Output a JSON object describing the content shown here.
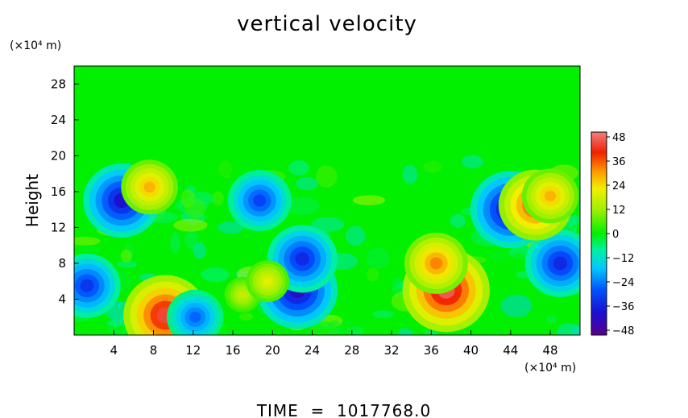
{
  "chart_data": {
    "type": "heatmap",
    "title": "vertical velocity",
    "ylabel": "Height",
    "y_unit_label": "(×10⁴ m)",
    "x_unit_label": "(×10⁴ m)",
    "footer": "TIME  =  1017768.0",
    "xlim": [
      0,
      51
    ],
    "ylim": [
      0,
      30
    ],
    "x_ticks": [
      4,
      8,
      12,
      16,
      20,
      24,
      28,
      32,
      36,
      40,
      44,
      48
    ],
    "x_tick_labels": [
      "4",
      "8",
      "12",
      "16",
      "20",
      "24",
      "28",
      "32",
      "36",
      "40",
      "44",
      "48"
    ],
    "y_ticks": [
      4,
      8,
      12,
      16,
      20,
      24,
      28
    ],
    "y_tick_labels": [
      "4",
      "8",
      "12",
      "16",
      "20",
      "24",
      "28"
    ],
    "colorbar": {
      "range": [
        -48,
        48
      ],
      "ticks": [
        48,
        36,
        24,
        12,
        0,
        -12,
        -24,
        -36,
        -48
      ],
      "tick_labels": [
        "48",
        "36",
        "24",
        "12",
        "0",
        "−12",
        "−24",
        "−36",
        "−48"
      ]
    },
    "features": [
      {
        "x": 37.5,
        "y": 5.0,
        "value": 44
      },
      {
        "x": 36.5,
        "y": 8.0,
        "value": 30
      },
      {
        "x": 22.5,
        "y": 5.0,
        "value": -40
      },
      {
        "x": 23.0,
        "y": 8.5,
        "value": -34
      },
      {
        "x": 4.8,
        "y": 15.0,
        "value": -38
      },
      {
        "x": 44.0,
        "y": 14.0,
        "value": -40
      },
      {
        "x": 49.0,
        "y": 8.0,
        "value": -34
      },
      {
        "x": 9.2,
        "y": 2.2,
        "value": 42
      },
      {
        "x": 46.5,
        "y": 14.5,
        "value": 36
      },
      {
        "x": 48.0,
        "y": 15.5,
        "value": 26
      },
      {
        "x": 7.6,
        "y": 16.5,
        "value": 26
      },
      {
        "x": 1.3,
        "y": 5.5,
        "value": -32
      },
      {
        "x": 18.7,
        "y": 15.0,
        "value": -30
      },
      {
        "x": 12.2,
        "y": 2.0,
        "value": -26
      },
      {
        "x": 17.0,
        "y": 4.5,
        "value": 14
      },
      {
        "x": 19.5,
        "y": 6.0,
        "value": 18
      }
    ]
  }
}
